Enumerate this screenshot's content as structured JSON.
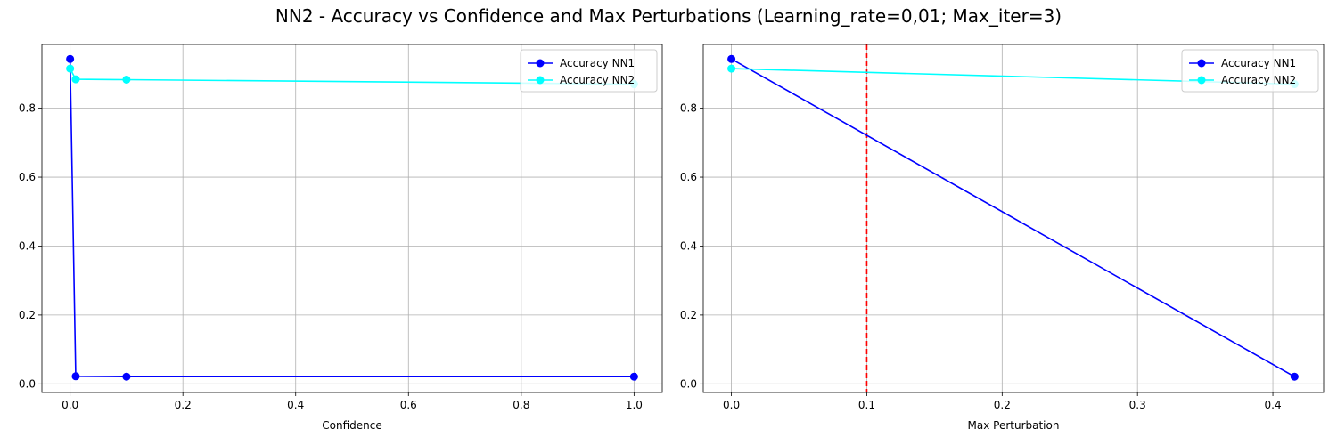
{
  "figure": {
    "title": "NN2 - Accuracy vs Confidence and Max Perturbations (Learning_rate=0,01; Max_iter=3)"
  },
  "chart_data": [
    {
      "type": "line",
      "xlabel": "Confidence",
      "ylabel": "",
      "xlim": [
        -0.05,
        1.05
      ],
      "ylim": [
        -0.025,
        0.985
      ],
      "xticks": [
        0.0,
        0.2,
        0.4,
        0.6,
        0.8,
        1.0
      ],
      "xtick_labels": [
        "0.0",
        "0.2",
        "0.4",
        "0.6",
        "0.8",
        "1.0"
      ],
      "yticks": [
        0.0,
        0.2,
        0.4,
        0.6,
        0.8
      ],
      "ytick_labels": [
        "0.0",
        "0.2",
        "0.4",
        "0.6",
        "0.8"
      ],
      "grid": true,
      "legend": "top-right",
      "series": [
        {
          "name": "Accuracy NN1",
          "color": "#0000ff",
          "marker": "circle",
          "x": [
            0.0,
            0.01,
            0.1,
            1.0
          ],
          "y": [
            0.943,
            0.022,
            0.021,
            0.021
          ]
        },
        {
          "name": "Accuracy NN2",
          "color": "#00ffff",
          "marker": "circle",
          "x": [
            0.0,
            0.01,
            0.1,
            1.0
          ],
          "y": [
            0.915,
            0.884,
            0.883,
            0.87
          ]
        }
      ],
      "vlines": []
    },
    {
      "type": "line",
      "xlabel": "Max Perturbation",
      "ylabel": "",
      "xlim": [
        -0.0208,
        0.4375
      ],
      "ylim": [
        -0.025,
        0.985
      ],
      "xticks": [
        0.0,
        0.1,
        0.2,
        0.3,
        0.4
      ],
      "xtick_labels": [
        "0.0",
        "0.1",
        "0.2",
        "0.3",
        "0.4"
      ],
      "yticks": [
        0.0,
        0.2,
        0.4,
        0.6,
        0.8
      ],
      "ytick_labels": [
        "0.0",
        "0.2",
        "0.4",
        "0.6",
        "0.8"
      ],
      "grid": true,
      "legend": "top-right",
      "series": [
        {
          "name": "Accuracy NN1",
          "color": "#0000ff",
          "marker": "circle",
          "x": [
            0.0,
            0.416
          ],
          "y": [
            0.943,
            0.021
          ]
        },
        {
          "name": "Accuracy NN2",
          "color": "#00ffff",
          "marker": "circle",
          "x": [
            0.0,
            0.416
          ],
          "y": [
            0.915,
            0.87
          ]
        }
      ],
      "vlines": [
        {
          "x": 0.1,
          "color": "#ff0000",
          "style": "dashed"
        }
      ]
    }
  ]
}
